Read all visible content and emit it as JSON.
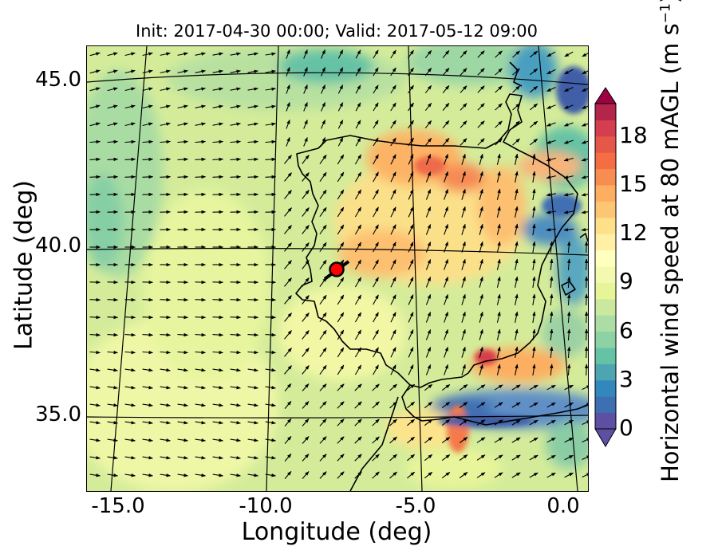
{
  "title": "Init: 2017-04-30 00:00; Valid: 2017-05-12 09:00",
  "axes": {
    "xlabel": "Longitude (deg)",
    "ylabel": "Latitude (deg)",
    "xticks": [
      "-15.0",
      "-10.0",
      "-5.0",
      "0.0"
    ],
    "yticks": [
      "45.0",
      "40.0",
      "35.0"
    ],
    "xlim": [
      -16.0,
      0.2
    ],
    "ylim": [
      32.8,
      46.0
    ]
  },
  "colorbar": {
    "label_main": "Horizontal wind speed at 80 mAGL (m s",
    "label_exp": "−1",
    "label_close": ")",
    "ticks": [
      "0",
      "3",
      "6",
      "9",
      "12",
      "15",
      "18"
    ],
    "range": [
      0,
      20
    ],
    "extend": "both",
    "colormap": "Spectral_r"
  },
  "marker": {
    "lon": -7.6,
    "lat": 39.3,
    "color": "#ff0000",
    "shape": "circle"
  },
  "map": {
    "region": "Iberian Peninsula",
    "graticule_meridians": [
      -15,
      -10,
      -5,
      0
    ],
    "graticule_parallels": [
      45,
      40,
      35
    ],
    "background_speed_range": "6-10 m/s",
    "field": "wind vectors with speed shading"
  }
}
